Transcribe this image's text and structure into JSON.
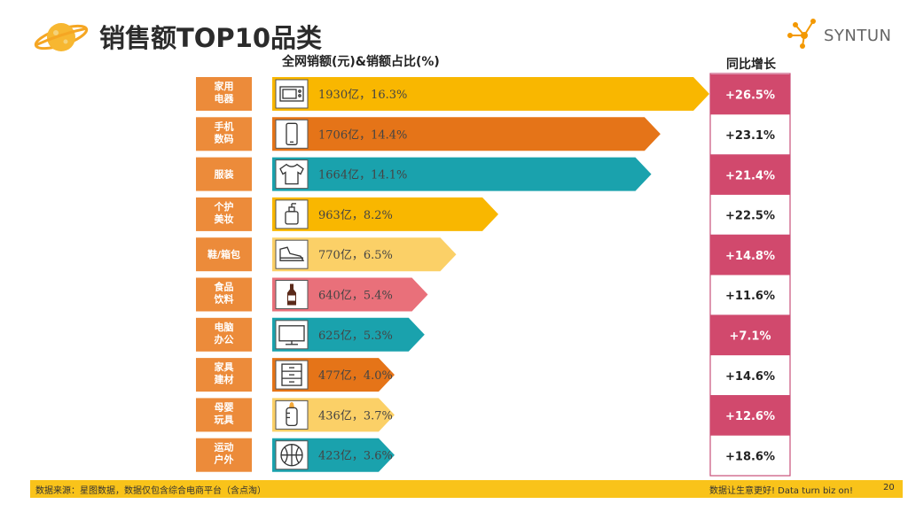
{
  "page": {
    "title": "销售额TOP10品类",
    "brand": "SYNTUN",
    "footer_source": "数据来源：星图数据，数据仅包含综合电商平台（含点淘）",
    "footer_slogan": "数据让生意更好! Data turn biz on!",
    "page_number": "20"
  },
  "chart_data": {
    "type": "bar",
    "title": "销售额TOP10品类",
    "bar_header": "全网销额(元)&销额占比(%)",
    "growth_header": "同比增长",
    "categories": [
      "家用\n电器",
      "手机\n数码",
      "服装",
      "个护\n美妆",
      "鞋/箱包",
      "食品\n饮料",
      "电脑\n办公",
      "家具\n建材",
      "母婴\n玩具",
      "运动\n户外"
    ],
    "values": [
      1930,
      1706,
      1664,
      963,
      770,
      640,
      625,
      477,
      436,
      423
    ],
    "value_unit": "亿",
    "shares": [
      16.3,
      14.4,
      14.1,
      8.2,
      6.5,
      5.4,
      5.3,
      4.0,
      3.7,
      3.6
    ],
    "bar_labels": [
      "1930亿，16.3%",
      "1706亿，14.4%",
      "1664亿，14.1%",
      "963亿，8.2%",
      "770亿，6.5%",
      "640亿，5.4%",
      "625亿，5.3%",
      "477亿，4.0%",
      "436亿，3.7%",
      "423亿，3.6%"
    ],
    "growth": [
      "+26.5%",
      "+23.1%",
      "+21.4%",
      "+22.5%",
      "+14.8%",
      "+11.6%",
      "+7.1%",
      "+14.6%",
      "+12.6%",
      "+18.6%"
    ],
    "growth_highlight": [
      true,
      false,
      true,
      false,
      true,
      false,
      true,
      false,
      true,
      false
    ],
    "bar_colors": [
      "#f9b700",
      "#e57418",
      "#1aa2ad",
      "#f9b700",
      "#fbd067",
      "#e9707a",
      "#1aa2ad",
      "#e57418",
      "#fbd067",
      "#1aa2ad"
    ],
    "icons": [
      "microwave-icon",
      "phone-icon",
      "shirt-icon",
      "lotion-bottle-icon",
      "sneaker-icon",
      "drink-bottle-icon",
      "monitor-icon",
      "cabinet-icon",
      "baby-bottle-icon",
      "basketball-icon"
    ],
    "colors": {
      "label_box": "#ec8b3a",
      "growth_highlight_bg": "#d1496d",
      "growth_plain_bg": "#ffffff",
      "growth_border": "#c9517a",
      "accent": "#f9c31a"
    }
  }
}
